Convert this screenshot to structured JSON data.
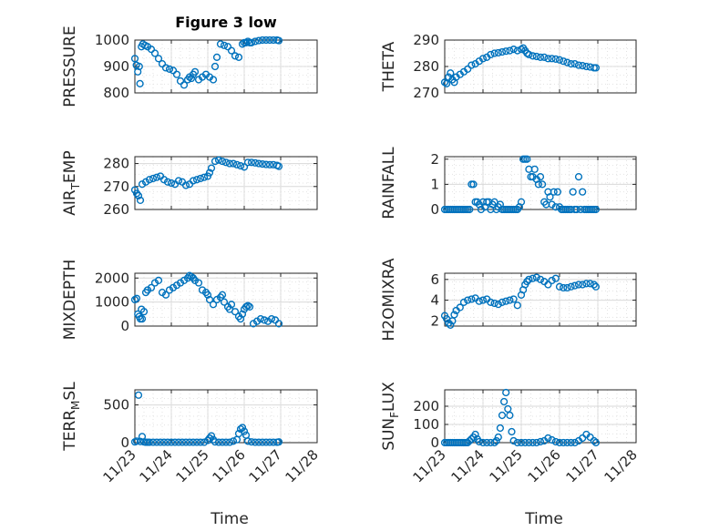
{
  "figure": {
    "title": "Figure 3 low",
    "xlabel": "Time",
    "xticks": [
      "11/23",
      "11/24",
      "11/25",
      "11/26",
      "11/27",
      "11/28"
    ],
    "marker_color": "#0072BD",
    "axis_color": "#262626",
    "grid_color": "#d9d9d9"
  },
  "chart_data": [
    {
      "id": "pressure",
      "type": "scatter",
      "title": "Figure 3 low",
      "ylabel": "PRESSURE",
      "ylim": [
        800,
        1000
      ],
      "yticks": [
        800,
        900,
        1000
      ],
      "xlim": [
        0,
        5
      ],
      "show_xticks": false,
      "x": [
        0.0,
        0.04,
        0.08,
        0.12,
        0.14,
        0.18,
        0.22,
        0.28,
        0.35,
        0.45,
        0.55,
        0.65,
        0.75,
        0.85,
        0.95,
        1.05,
        1.15,
        1.25,
        1.35,
        1.45,
        1.5,
        1.55,
        1.6,
        1.65,
        1.75,
        1.85,
        1.95,
        2.05,
        2.15,
        2.2,
        2.25,
        2.35,
        2.45,
        2.55,
        2.65,
        2.75,
        2.85,
        2.95,
        3.0,
        3.05,
        3.1,
        3.15,
        3.2,
        3.3,
        3.4,
        3.5,
        3.6,
        3.7,
        3.8,
        3.9,
        3.95
      ],
      "y": [
        930,
        905,
        880,
        900,
        835,
        975,
        985,
        980,
        975,
        965,
        950,
        930,
        910,
        895,
        890,
        885,
        870,
        845,
        830,
        850,
        860,
        855,
        870,
        880,
        850,
        860,
        870,
        860,
        850,
        900,
        935,
        985,
        980,
        975,
        960,
        940,
        935,
        985,
        990,
        990,
        995,
        990,
        990,
        995,
        998,
        1000,
        1005,
        1005,
        1000,
        1000,
        998
      ]
    },
    {
      "id": "theta",
      "type": "scatter",
      "ylabel": "THETA",
      "ylim": [
        270,
        290
      ],
      "yticks": [
        270,
        280,
        290
      ],
      "xlim": [
        0,
        5
      ],
      "show_xticks": false,
      "x": [
        0.0,
        0.05,
        0.1,
        0.15,
        0.2,
        0.25,
        0.3,
        0.4,
        0.5,
        0.6,
        0.7,
        0.8,
        0.9,
        1.0,
        1.1,
        1.2,
        1.3,
        1.4,
        1.5,
        1.6,
        1.7,
        1.8,
        1.9,
        2.0,
        2.05,
        2.1,
        2.15,
        2.2,
        2.3,
        2.4,
        2.5,
        2.6,
        2.7,
        2.8,
        2.9,
        3.0,
        3.1,
        3.2,
        3.3,
        3.4,
        3.5,
        3.6,
        3.7,
        3.8,
        3.9,
        3.95
      ],
      "y": [
        274,
        273.5,
        276,
        277.5,
        275,
        274,
        276,
        277,
        278,
        279,
        280.5,
        281,
        282,
        283,
        283.5,
        284.5,
        285,
        285.2,
        285.5,
        285.8,
        286,
        286.5,
        286,
        286.5,
        287,
        286,
        285,
        284.5,
        284,
        283.8,
        283.5,
        283.5,
        283,
        283,
        282.8,
        282.5,
        282,
        281.5,
        281,
        281,
        280.5,
        280.3,
        280,
        279.8,
        279.5,
        279.5
      ]
    },
    {
      "id": "air_temp",
      "type": "scatter",
      "ylabel": "AIR_TEMP",
      "ylim": [
        260,
        283
      ],
      "yticks": [
        260,
        270,
        280
      ],
      "xlim": [
        0,
        5
      ],
      "show_xticks": false,
      "x": [
        0.0,
        0.05,
        0.1,
        0.15,
        0.2,
        0.3,
        0.4,
        0.5,
        0.6,
        0.7,
        0.8,
        0.9,
        1.0,
        1.1,
        1.2,
        1.3,
        1.4,
        1.5,
        1.6,
        1.7,
        1.8,
        1.9,
        2.0,
        2.05,
        2.1,
        2.2,
        2.3,
        2.4,
        2.5,
        2.6,
        2.7,
        2.8,
        2.9,
        3.0,
        3.1,
        3.2,
        3.3,
        3.4,
        3.5,
        3.6,
        3.7,
        3.8,
        3.9,
        3.95
      ],
      "y": [
        268.5,
        267,
        266,
        264,
        271,
        272,
        273,
        273.5,
        274,
        274.5,
        273,
        272,
        271.5,
        271,
        272.5,
        272,
        270.5,
        271,
        272.5,
        273,
        273.5,
        274,
        274.5,
        276,
        278,
        281,
        281.5,
        281,
        280.5,
        280,
        280,
        279.5,
        279,
        278.5,
        280.5,
        280.5,
        280.3,
        280,
        279.8,
        279.6,
        279.5,
        279.5,
        279.2,
        278.8
      ]
    },
    {
      "id": "rainfall",
      "type": "scatter",
      "ylabel": "RAINFALL",
      "ylim": [
        0,
        2.1
      ],
      "yticks": [
        0,
        1,
        2
      ],
      "xlim": [
        0,
        5
      ],
      "show_xticks": false,
      "x": [
        0.0,
        0.05,
        0.1,
        0.15,
        0.2,
        0.25,
        0.3,
        0.35,
        0.4,
        0.45,
        0.5,
        0.55,
        0.6,
        0.65,
        0.7,
        0.75,
        0.8,
        0.85,
        0.9,
        0.95,
        1.0,
        1.05,
        1.1,
        1.15,
        1.2,
        1.25,
        1.3,
        1.35,
        1.4,
        1.45,
        1.5,
        1.55,
        1.6,
        1.65,
        1.7,
        1.75,
        1.8,
        1.85,
        1.9,
        1.95,
        2.0,
        2.05,
        2.1,
        2.15,
        2.2,
        2.25,
        2.3,
        2.35,
        2.4,
        2.45,
        2.5,
        2.55,
        2.6,
        2.65,
        2.7,
        2.75,
        2.8,
        2.85,
        2.9,
        2.95,
        3.0,
        3.05,
        3.1,
        3.15,
        3.2,
        3.25,
        3.3,
        3.35,
        3.4,
        3.45,
        3.5,
        3.55,
        3.6,
        3.65,
        3.7,
        3.75,
        3.8,
        3.85,
        3.9,
        3.95
      ],
      "y": [
        0,
        0,
        0,
        0,
        0,
        0,
        0,
        0,
        0,
        0,
        0,
        0,
        0,
        0,
        1,
        1,
        0.3,
        0.3,
        0.2,
        0,
        0.3,
        0.1,
        0.3,
        0.3,
        0,
        0.2,
        0.3,
        0,
        0.1,
        0.2,
        0,
        0,
        0,
        0,
        0,
        0,
        0,
        0,
        0,
        0.1,
        0.3,
        2,
        2,
        2,
        1.6,
        1.3,
        1.3,
        1.6,
        1.2,
        1,
        1.3,
        1,
        0.3,
        0.2,
        0.7,
        0.5,
        0.2,
        0.7,
        0.1,
        0.7,
        0.1,
        0,
        0,
        0,
        0,
        0,
        0,
        0.7,
        0,
        0,
        1.3,
        0,
        0.7,
        0,
        0,
        0,
        0,
        0,
        0,
        0
      ]
    },
    {
      "id": "mixdepth",
      "type": "scatter",
      "ylabel": "MIXDEPTH",
      "ylim": [
        0,
        2200
      ],
      "yticks": [
        0,
        1000,
        2000
      ],
      "xlim": [
        0,
        5
      ],
      "show_xticks": false,
      "x": [
        0.0,
        0.05,
        0.08,
        0.12,
        0.15,
        0.18,
        0.2,
        0.25,
        0.3,
        0.35,
        0.45,
        0.55,
        0.65,
        0.75,
        0.85,
        0.95,
        1.05,
        1.15,
        1.25,
        1.35,
        1.45,
        1.5,
        1.55,
        1.6,
        1.65,
        1.75,
        1.85,
        1.95,
        2.0,
        2.05,
        2.15,
        2.25,
        2.35,
        2.4,
        2.45,
        2.55,
        2.6,
        2.65,
        2.75,
        2.85,
        2.9,
        2.95,
        3.0,
        3.05,
        3.1,
        3.15,
        3.25,
        3.35,
        3.45,
        3.55,
        3.65,
        3.75,
        3.85,
        3.95
      ],
      "y": [
        1100,
        1150,
        500,
        400,
        300,
        700,
        300,
        600,
        1400,
        1500,
        1600,
        1800,
        1900,
        1400,
        1300,
        1500,
        1600,
        1700,
        1800,
        1900,
        2000,
        2100,
        2050,
        2000,
        1900,
        1800,
        1500,
        1400,
        1300,
        1100,
        900,
        1100,
        1200,
        1300,
        1000,
        800,
        700,
        900,
        600,
        400,
        300,
        500,
        700,
        800,
        850,
        800,
        100,
        200,
        300,
        250,
        200,
        300,
        250,
        100
      ]
    },
    {
      "id": "h2omixra",
      "type": "scatter",
      "ylabel": "H2OMIXRA",
      "ylim": [
        1.5,
        6.6
      ],
      "yticks": [
        2,
        4,
        6
      ],
      "xlim": [
        0,
        5
      ],
      "show_xticks": false,
      "x": [
        0.0,
        0.05,
        0.1,
        0.15,
        0.2,
        0.25,
        0.3,
        0.4,
        0.5,
        0.6,
        0.7,
        0.8,
        0.9,
        1.0,
        1.1,
        1.2,
        1.3,
        1.4,
        1.5,
        1.6,
        1.7,
        1.8,
        1.9,
        2.0,
        2.05,
        2.1,
        2.15,
        2.2,
        2.3,
        2.4,
        2.5,
        2.6,
        2.7,
        2.8,
        2.9,
        3.0,
        3.1,
        3.2,
        3.3,
        3.4,
        3.5,
        3.6,
        3.7,
        3.8,
        3.9,
        3.95
      ],
      "y": [
        2.5,
        2.2,
        1.8,
        1.6,
        2.0,
        2.6,
        3.0,
        3.3,
        3.8,
        4.0,
        4.1,
        4.2,
        3.9,
        4.0,
        4.1,
        3.8,
        3.7,
        3.6,
        3.8,
        3.9,
        4.0,
        4.1,
        3.5,
        4.5,
        5.0,
        5.5,
        5.8,
        6.0,
        6.1,
        6.2,
        6.0,
        5.8,
        5.5,
        5.9,
        6.1,
        5.3,
        5.2,
        5.2,
        5.3,
        5.4,
        5.5,
        5.5,
        5.6,
        5.6,
        5.5,
        5.3
      ]
    },
    {
      "id": "terr_msl",
      "type": "scatter",
      "ylabel": "TERR_MSL",
      "ylim": [
        0,
        700
      ],
      "yticks": [
        0,
        500
      ],
      "xlim": [
        0,
        5
      ],
      "show_xticks": true,
      "x": [
        0.0,
        0.05,
        0.1,
        0.15,
        0.2,
        0.25,
        0.3,
        0.35,
        0.4,
        0.5,
        0.6,
        0.7,
        0.8,
        0.9,
        1.0,
        1.1,
        1.2,
        1.3,
        1.4,
        1.5,
        1.6,
        1.7,
        1.8,
        1.9,
        2.0,
        2.05,
        2.1,
        2.15,
        2.2,
        2.3,
        2.4,
        2.5,
        2.6,
        2.7,
        2.8,
        2.85,
        2.9,
        2.95,
        3.0,
        3.05,
        3.1,
        3.2,
        3.3,
        3.4,
        3.5,
        3.6,
        3.7,
        3.8,
        3.9,
        3.95
      ],
      "y": [
        10,
        20,
        630,
        15,
        80,
        10,
        5,
        5,
        5,
        5,
        5,
        5,
        5,
        5,
        5,
        5,
        5,
        5,
        5,
        5,
        5,
        5,
        5,
        5,
        30,
        60,
        90,
        40,
        10,
        5,
        5,
        5,
        5,
        20,
        40,
        120,
        180,
        200,
        150,
        100,
        20,
        10,
        5,
        5,
        5,
        5,
        5,
        5,
        5,
        10
      ]
    },
    {
      "id": "sun_flux",
      "type": "scatter",
      "ylabel": "SUN_FLUX",
      "ylim": [
        0,
        290
      ],
      "yticks": [
        0,
        100,
        200
      ],
      "xlim": [
        0,
        5
      ],
      "show_xticks": true,
      "x": [
        0.0,
        0.05,
        0.1,
        0.15,
        0.2,
        0.25,
        0.3,
        0.35,
        0.4,
        0.45,
        0.5,
        0.55,
        0.6,
        0.65,
        0.7,
        0.75,
        0.8,
        0.85,
        0.9,
        1.0,
        1.1,
        1.2,
        1.3,
        1.35,
        1.4,
        1.45,
        1.5,
        1.55,
        1.6,
        1.65,
        1.7,
        1.75,
        1.8,
        1.9,
        2.0,
        2.1,
        2.2,
        2.3,
        2.4,
        2.5,
        2.6,
        2.7,
        2.8,
        2.9,
        3.0,
        3.1,
        3.2,
        3.3,
        3.4,
        3.5,
        3.6,
        3.7,
        3.8,
        3.9,
        3.95
      ],
      "y": [
        0,
        0,
        0,
        0,
        0,
        0,
        0,
        0,
        0,
        0,
        0,
        0,
        0,
        10,
        20,
        30,
        45,
        20,
        5,
        0,
        0,
        0,
        0,
        10,
        30,
        80,
        150,
        225,
        275,
        185,
        150,
        60,
        10,
        0,
        0,
        0,
        0,
        0,
        0,
        5,
        10,
        25,
        15,
        5,
        0,
        0,
        0,
        0,
        0,
        10,
        25,
        45,
        30,
        10,
        0
      ]
    }
  ]
}
